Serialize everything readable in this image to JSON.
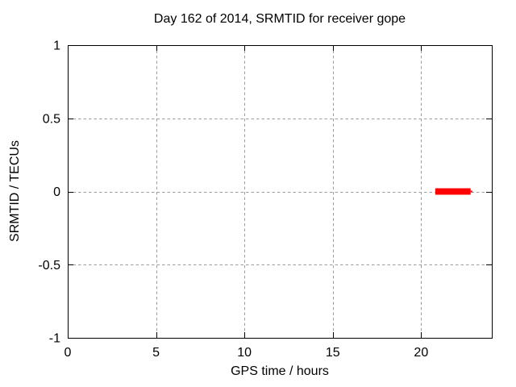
{
  "chart_data": {
    "type": "line",
    "title": "Day 162 of 2014, SRMTID for receiver gope",
    "xlabel": "GPS time / hours",
    "ylabel": "SRMTID / TECUs",
    "xlim": [
      0,
      24
    ],
    "ylim": [
      -1,
      1
    ],
    "xticks": [
      0,
      5,
      10,
      15,
      20
    ],
    "yticks": [
      -1,
      -0.5,
      0,
      0.5,
      1
    ],
    "grid": true,
    "grid_style": "dashed",
    "legend": "none",
    "colors": {
      "background": "#ffffff",
      "axis": "#000000",
      "grid": "#9e9e9e",
      "series": "#ff0000"
    },
    "series": [
      {
        "name": "SRMTID",
        "color": "#ff0000",
        "segments": [
          {
            "x1": 20.8,
            "x2": 22.8,
            "y": 0.0,
            "stroke_width": 8
          },
          {
            "x1": 22.8,
            "x2": 22.9,
            "y": 0.0,
            "stroke_width": 2
          }
        ]
      }
    ]
  }
}
